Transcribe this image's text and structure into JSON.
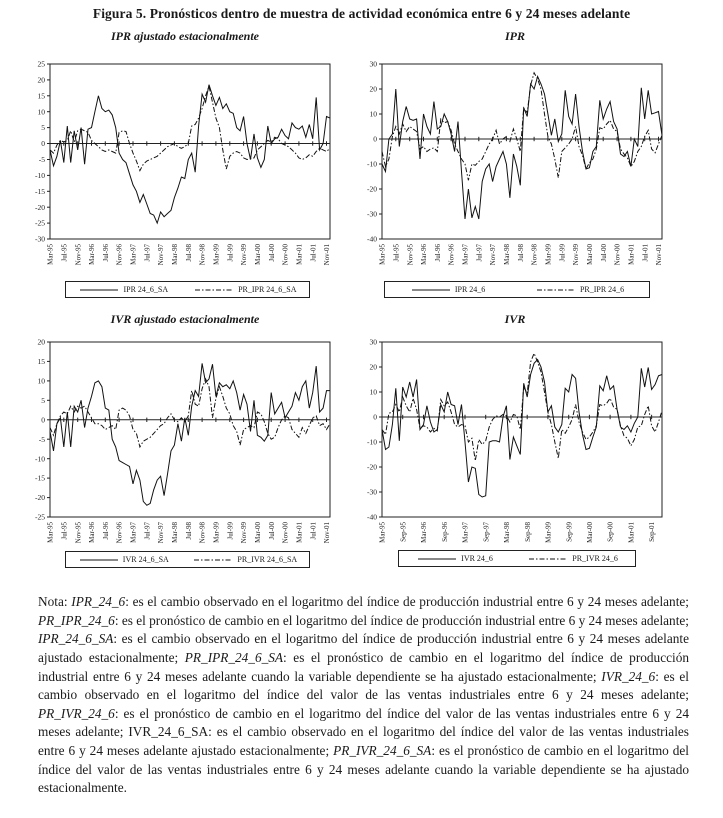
{
  "title": "Figura 5. Pronósticos dentro de muestra de actividad económica entre 6 y 24 meses adelante",
  "chart_data": [
    {
      "type": "line",
      "title": "IPR ajustado estacionalmente",
      "ylim": [
        -30,
        25
      ],
      "yticks": [
        25,
        20,
        15,
        10,
        5,
        0,
        -5,
        -10,
        -15,
        -20,
        -25,
        -30
      ],
      "grid": false,
      "legend_position": "bottom",
      "x_tick_step_months": 4,
      "x_tick_labels": [
        "Mar-95",
        "Jul-95",
        "Nov-95",
        "Mar-96",
        "Jul-96",
        "Nov-96",
        "Mar-97",
        "Jul-97",
        "Nov-97",
        "Mar-98",
        "Jul-98",
        "Nov-98",
        "Mar-99",
        "Jul-99",
        "Nov-99",
        "Mar-00",
        "Jul-00",
        "Nov-00",
        "Mar-01",
        "Jul-01",
        "Nov-01"
      ],
      "series": [
        {
          "name": "IPR 24_6_SA",
          "line": "solid",
          "values": [
            -2,
            -7,
            -4,
            1,
            -6,
            5.5,
            -6,
            4,
            -2,
            5,
            -6.5,
            4.5,
            5,
            10,
            15,
            11,
            10,
            10.5,
            9,
            5,
            -3,
            -5,
            -6,
            -9.5,
            -13,
            -15,
            -18.5,
            -16,
            -19,
            -22,
            -22.5,
            -25,
            -21.5,
            -23,
            -22,
            -21,
            -17,
            -14,
            -10.5,
            -11,
            -5,
            -3,
            -9,
            5.5,
            15.5,
            13,
            18.5,
            15,
            12,
            14.5,
            11,
            12.5,
            10,
            9.5,
            5,
            4,
            8.5,
            0,
            -5,
            3,
            -4.5,
            -7.5,
            -5,
            5.5,
            0,
            1.5,
            2,
            4.5,
            2.5,
            1.5,
            6.5,
            5,
            4.5,
            5.5,
            2,
            6,
            1.5,
            14.5,
            -2,
            0,
            8.5,
            8
          ]
        },
        {
          "name": "PR_IPR 24_6_SA",
          "line": "dashed",
          "values": [
            -2,
            -3,
            -0.5,
            1,
            0.5,
            1,
            4,
            0.5,
            4,
            4.5,
            4,
            3.5,
            1,
            0,
            -1,
            -2,
            -2.5,
            -2,
            -2.5,
            -3,
            3.5,
            4,
            3.8,
            0,
            -3,
            -5.5,
            -8.5,
            -6.5,
            -5.5,
            -5,
            -4.5,
            -4,
            -3,
            -2,
            -1,
            -0.5,
            0,
            -1,
            -1.5,
            -1,
            0,
            5.5,
            6,
            8,
            11,
            15,
            18,
            13,
            8,
            5,
            -2,
            -8,
            -4,
            -3,
            -2.5,
            -3,
            -4.5,
            -5,
            -4.8,
            -4.5,
            -2,
            -1,
            0,
            1,
            0.5,
            2,
            1.5,
            0,
            -0.5,
            -1,
            -2,
            -3,
            -4.5,
            -5,
            -4.5,
            -3.5,
            -4,
            -2.5,
            -1.5,
            -2,
            -2.5,
            -1.5
          ]
        }
      ]
    },
    {
      "type": "line",
      "title": "IPR",
      "ylim": [
        -40,
        30
      ],
      "yticks": [
        30,
        20,
        10,
        0,
        -10,
        -20,
        -30,
        -40
      ],
      "grid": false,
      "legend_position": "bottom",
      "x_tick_step_months": 4,
      "x_tick_labels": [
        "Mar-95",
        "Jul-95",
        "Nov-95",
        "Mar-96",
        "Jul-96",
        "Nov-96",
        "Mar-97",
        "Jul-97",
        "Nov-97",
        "Mar-98",
        "Jul-98",
        "Nov-98",
        "Mar-99",
        "Jul-99",
        "Nov-99",
        "Mar-00",
        "Jul-00",
        "Nov-00",
        "Mar-01",
        "Jul-01",
        "Nov-01"
      ],
      "series": [
        {
          "name": "IPR 24_6",
          "line": "solid",
          "values": [
            -10,
            -13,
            0,
            2,
            20,
            -3,
            7,
            13,
            8,
            7.5,
            8,
            -8,
            10,
            5,
            2,
            15,
            4,
            5,
            10,
            7,
            2,
            -5,
            7,
            -13,
            -32,
            -20,
            -31.5,
            -27,
            -32,
            -17,
            -12,
            -10,
            -17,
            -11,
            -8,
            -5,
            -10,
            -23.5,
            -6,
            -11,
            -18.5,
            12.5,
            9,
            22,
            20,
            25,
            22,
            18,
            10,
            1.5,
            8,
            -1,
            2,
            19.5,
            9,
            6,
            18,
            5,
            -5,
            -12,
            -11.5,
            -5,
            -3,
            15.5,
            8,
            12,
            15,
            7,
            4,
            -6,
            -7,
            -5,
            -11,
            0,
            -3,
            20.5,
            8,
            19.5,
            10,
            10.5,
            11,
            1.5
          ]
        },
        {
          "name": "PR_IPR 24_6",
          "line": "dashed",
          "values": [
            -5,
            -11,
            -8,
            1,
            5,
            2,
            6,
            3,
            5,
            4,
            3,
            -4,
            -3,
            -5,
            -4,
            -3.5,
            -5,
            8,
            6.5,
            7,
            3.5,
            -2,
            -5,
            -8,
            -10,
            -16.5,
            -10,
            -10.5,
            -9,
            -8,
            -5,
            -2,
            0,
            3.5,
            -2,
            0,
            1,
            -1,
            4,
            0,
            -5,
            12.5,
            10.5,
            21.5,
            26.5,
            24,
            20,
            10,
            1,
            -2,
            -8,
            -15.5,
            -5,
            -3.5,
            -2,
            0,
            5,
            -3,
            -6.5,
            -12,
            -9.5,
            -8,
            -4,
            4.5,
            4,
            6,
            7.5,
            4,
            3,
            -4,
            -6,
            -7.5,
            -11,
            -9,
            -5,
            -3,
            1,
            3.5,
            -4,
            -5.5,
            -2,
            1.5
          ]
        }
      ]
    },
    {
      "type": "line",
      "title": "IVR  ajustado estacionalmente",
      "ylim": [
        -25,
        20
      ],
      "yticks": [
        20,
        15,
        10,
        5,
        0,
        -5,
        -10,
        -15,
        -20,
        -25
      ],
      "grid": false,
      "legend_position": "bottom",
      "x_tick_step_months": 4,
      "x_tick_labels": [
        "Mar-95",
        "Jul-95",
        "Nov-95",
        "Mar-96",
        "Jul-96",
        "Nov-96",
        "Mar-97",
        "Jul-97",
        "Nov-97",
        "Mar-98",
        "Jul-98",
        "Nov-98",
        "Mar-99",
        "Jul-99",
        "Nov-99",
        "Mar-00",
        "Jul-00",
        "Nov-00",
        "Mar-01",
        "Jul-01",
        "Nov-01"
      ],
      "series": [
        {
          "name": "IVR 24_6_SA",
          "line": "solid",
          "values": [
            -3,
            -8,
            -1,
            0.5,
            -7,
            2,
            -7,
            3.5,
            2,
            5,
            -2,
            3,
            6,
            9.5,
            10,
            8.5,
            3,
            2.5,
            -5,
            -7,
            -10.5,
            -11,
            -11.5,
            -12,
            -16.5,
            -13,
            -15.5,
            -21,
            -22,
            -21.5,
            -18,
            -15.5,
            -14.5,
            -19.5,
            -14,
            -8,
            -6.5,
            -1,
            -5.5,
            0.5,
            -4,
            3.5,
            7.5,
            6,
            14.5,
            9.5,
            10.5,
            14.3,
            6,
            9.5,
            8.5,
            9,
            8,
            10,
            7,
            2.5,
            6.5,
            4,
            -3,
            5,
            -4,
            -4.5,
            -5.5,
            -4,
            7,
            1.5,
            3,
            4.5,
            0.5,
            2,
            3.5,
            7,
            5,
            8.5,
            10,
            3,
            7,
            13.8,
            2,
            3,
            7.5,
            7.5
          ]
        },
        {
          "name": "PR_IVR 24_6_SA",
          "line": "dashed",
          "values": [
            -2,
            -4,
            -1,
            1,
            2,
            1.5,
            3.5,
            2,
            3.5,
            3,
            3.5,
            2,
            0.5,
            -1,
            -1,
            -1.5,
            -2.5,
            -2,
            -1.5,
            -2.5,
            2.5,
            3,
            2.5,
            1,
            -2.5,
            -3.5,
            -7,
            -5.5,
            -5,
            -4.5,
            -3.5,
            -2.5,
            -1.5,
            -1,
            0.5,
            1.5,
            0,
            -0.5,
            0.5,
            -0.5,
            1,
            7.5,
            4,
            3.5,
            8,
            10.5,
            8.5,
            0.5,
            5.5,
            8.5,
            6,
            3,
            1.5,
            -1.5,
            -3,
            -6.5,
            -2.5,
            -2,
            -1.5,
            -2,
            2,
            1.5,
            -0.5,
            -3.5,
            -5,
            -4.5,
            -2,
            0,
            1,
            0.5,
            -2.5,
            -3.5,
            -4.5,
            -2,
            -3.5,
            -1.5,
            0.5,
            1,
            -1.5,
            -1,
            -2.5,
            -1
          ]
        }
      ]
    },
    {
      "type": "line",
      "title": "IVR",
      "ylim": [
        -40,
        30
      ],
      "yticks": [
        30,
        20,
        10,
        0,
        -10,
        -20,
        -30,
        -40
      ],
      "grid": false,
      "legend_position": "bottom",
      "x_tick_step_months": 6,
      "x_tick_labels": [
        "Mar-95",
        "Sep-95",
        "Mar-96",
        "Sep-96",
        "Mar-97",
        "Sep-97",
        "Mar-98",
        "Sep-98",
        "Mar-99",
        "Sep-99",
        "Mar-00",
        "Sep-00",
        "Mar-01",
        "Sep-01"
      ],
      "series": [
        {
          "name": "IVR 24_6",
          "line": "solid",
          "values": [
            -5,
            -13,
            -12,
            -3,
            11.5,
            -9.5,
            12,
            8,
            14,
            8,
            15,
            -5,
            -3,
            4.5,
            -2,
            -6,
            -5,
            5,
            2,
            10,
            5,
            4.5,
            -3,
            5,
            -10,
            -26,
            -20,
            -20.5,
            -31,
            -32,
            -31.5,
            -10,
            -9.5,
            -9.5,
            -10,
            0,
            4.5,
            -17,
            -8,
            -11.5,
            -15,
            13.5,
            8,
            17,
            21.5,
            23,
            20,
            14,
            2,
            4.5,
            -4,
            -6,
            -3,
            11.5,
            10,
            17,
            15.5,
            2,
            -7,
            -13,
            -12.5,
            -8,
            -4,
            12.5,
            10.5,
            16.5,
            11,
            12.5,
            3,
            -4,
            -5,
            -3.5,
            -6,
            -2.5,
            0,
            19.5,
            12,
            19.8,
            11,
            13,
            16.5,
            17
          ]
        },
        {
          "name": "PR_IVR 24_6",
          "line": "dashed",
          "values": [
            -5,
            -7,
            1.5,
            2,
            5,
            2,
            8,
            4.5,
            2,
            7.5,
            3,
            -4.5,
            -3.5,
            -4,
            -6,
            -4.5,
            -5.5,
            7,
            4.5,
            6,
            2,
            -3,
            -4,
            -3,
            -3.5,
            -10,
            -8.5,
            -17.5,
            -9,
            -11,
            -9.5,
            -4,
            -1,
            0.5,
            0,
            1,
            0.5,
            -2,
            1,
            0.5,
            -5,
            12,
            9.5,
            22,
            25.5,
            22,
            18,
            10,
            2,
            -3,
            -10,
            -16.5,
            -5,
            -6.5,
            -4,
            -1,
            5,
            -2,
            -6,
            -9,
            -8,
            -6,
            -3.5,
            5,
            4.5,
            5.5,
            7.5,
            4,
            3,
            -3.5,
            -7.5,
            -8.5,
            -11.5,
            -9,
            -4,
            -3.5,
            1,
            4.5,
            -3.5,
            -6,
            -2,
            2.5
          ]
        }
      ]
    }
  ],
  "note_segments": [
    {
      "t": "Nota: ",
      "i": false
    },
    {
      "t": "IPR_24_6",
      "i": true
    },
    {
      "t": ": es el cambio observado en el logaritmo del índice de producción industrial entre 6 y 24 meses adelante; ",
      "i": false
    },
    {
      "t": "PR_IPR_24_6",
      "i": true
    },
    {
      "t": ": es el pronóstico de cambio en el logaritmo del índice de producción industrial entre 6 y 24 meses adelante; ",
      "i": false
    },
    {
      "t": "IPR_24_6_SA",
      "i": true
    },
    {
      "t": ": es el cambio observado en el logaritmo del índice de producción industrial entre 6 y 24 meses adelante ajustado estacionalmente; ",
      "i": false
    },
    {
      "t": "PR_IPR_24_6_SA",
      "i": true
    },
    {
      "t": ": es el pronóstico de cambio en el logaritmo del índice de producción industrial entre 6 y 24 meses adelante cuando la variable dependiente se ha ajustado estacionalmente; ",
      "i": false
    },
    {
      "t": "IVR_24_6",
      "i": true
    },
    {
      "t": ": es el cambio observado en el logaritmo del índice del valor de las ventas industriales entre 6 y 24 meses adelante; ",
      "i": false
    },
    {
      "t": "PR_IVR_24_6",
      "i": true
    },
    {
      "t": ": es el pronóstico de cambio en el logaritmo del índice del valor de las ventas industriales entre 6 y 24 meses adelante; ",
      "i": false
    },
    {
      "t": "IVR_24_6_SA",
      "i": false
    },
    {
      "t": ": es el cambio observado en el logaritmo del índice del valor de las ventas industriales entre 6 y 24 meses adelante ajustado estacionalmente; ",
      "i": false
    },
    {
      "t": "PR_IVR_24_6_SA",
      "i": true
    },
    {
      "t": ": es el pronóstico de cambio en el logaritmo del índice del valor de las ventas industriales entre 6 y 24 meses adelante cuando la variable dependiente se ha ajustado estacionalmente.",
      "i": false
    }
  ]
}
